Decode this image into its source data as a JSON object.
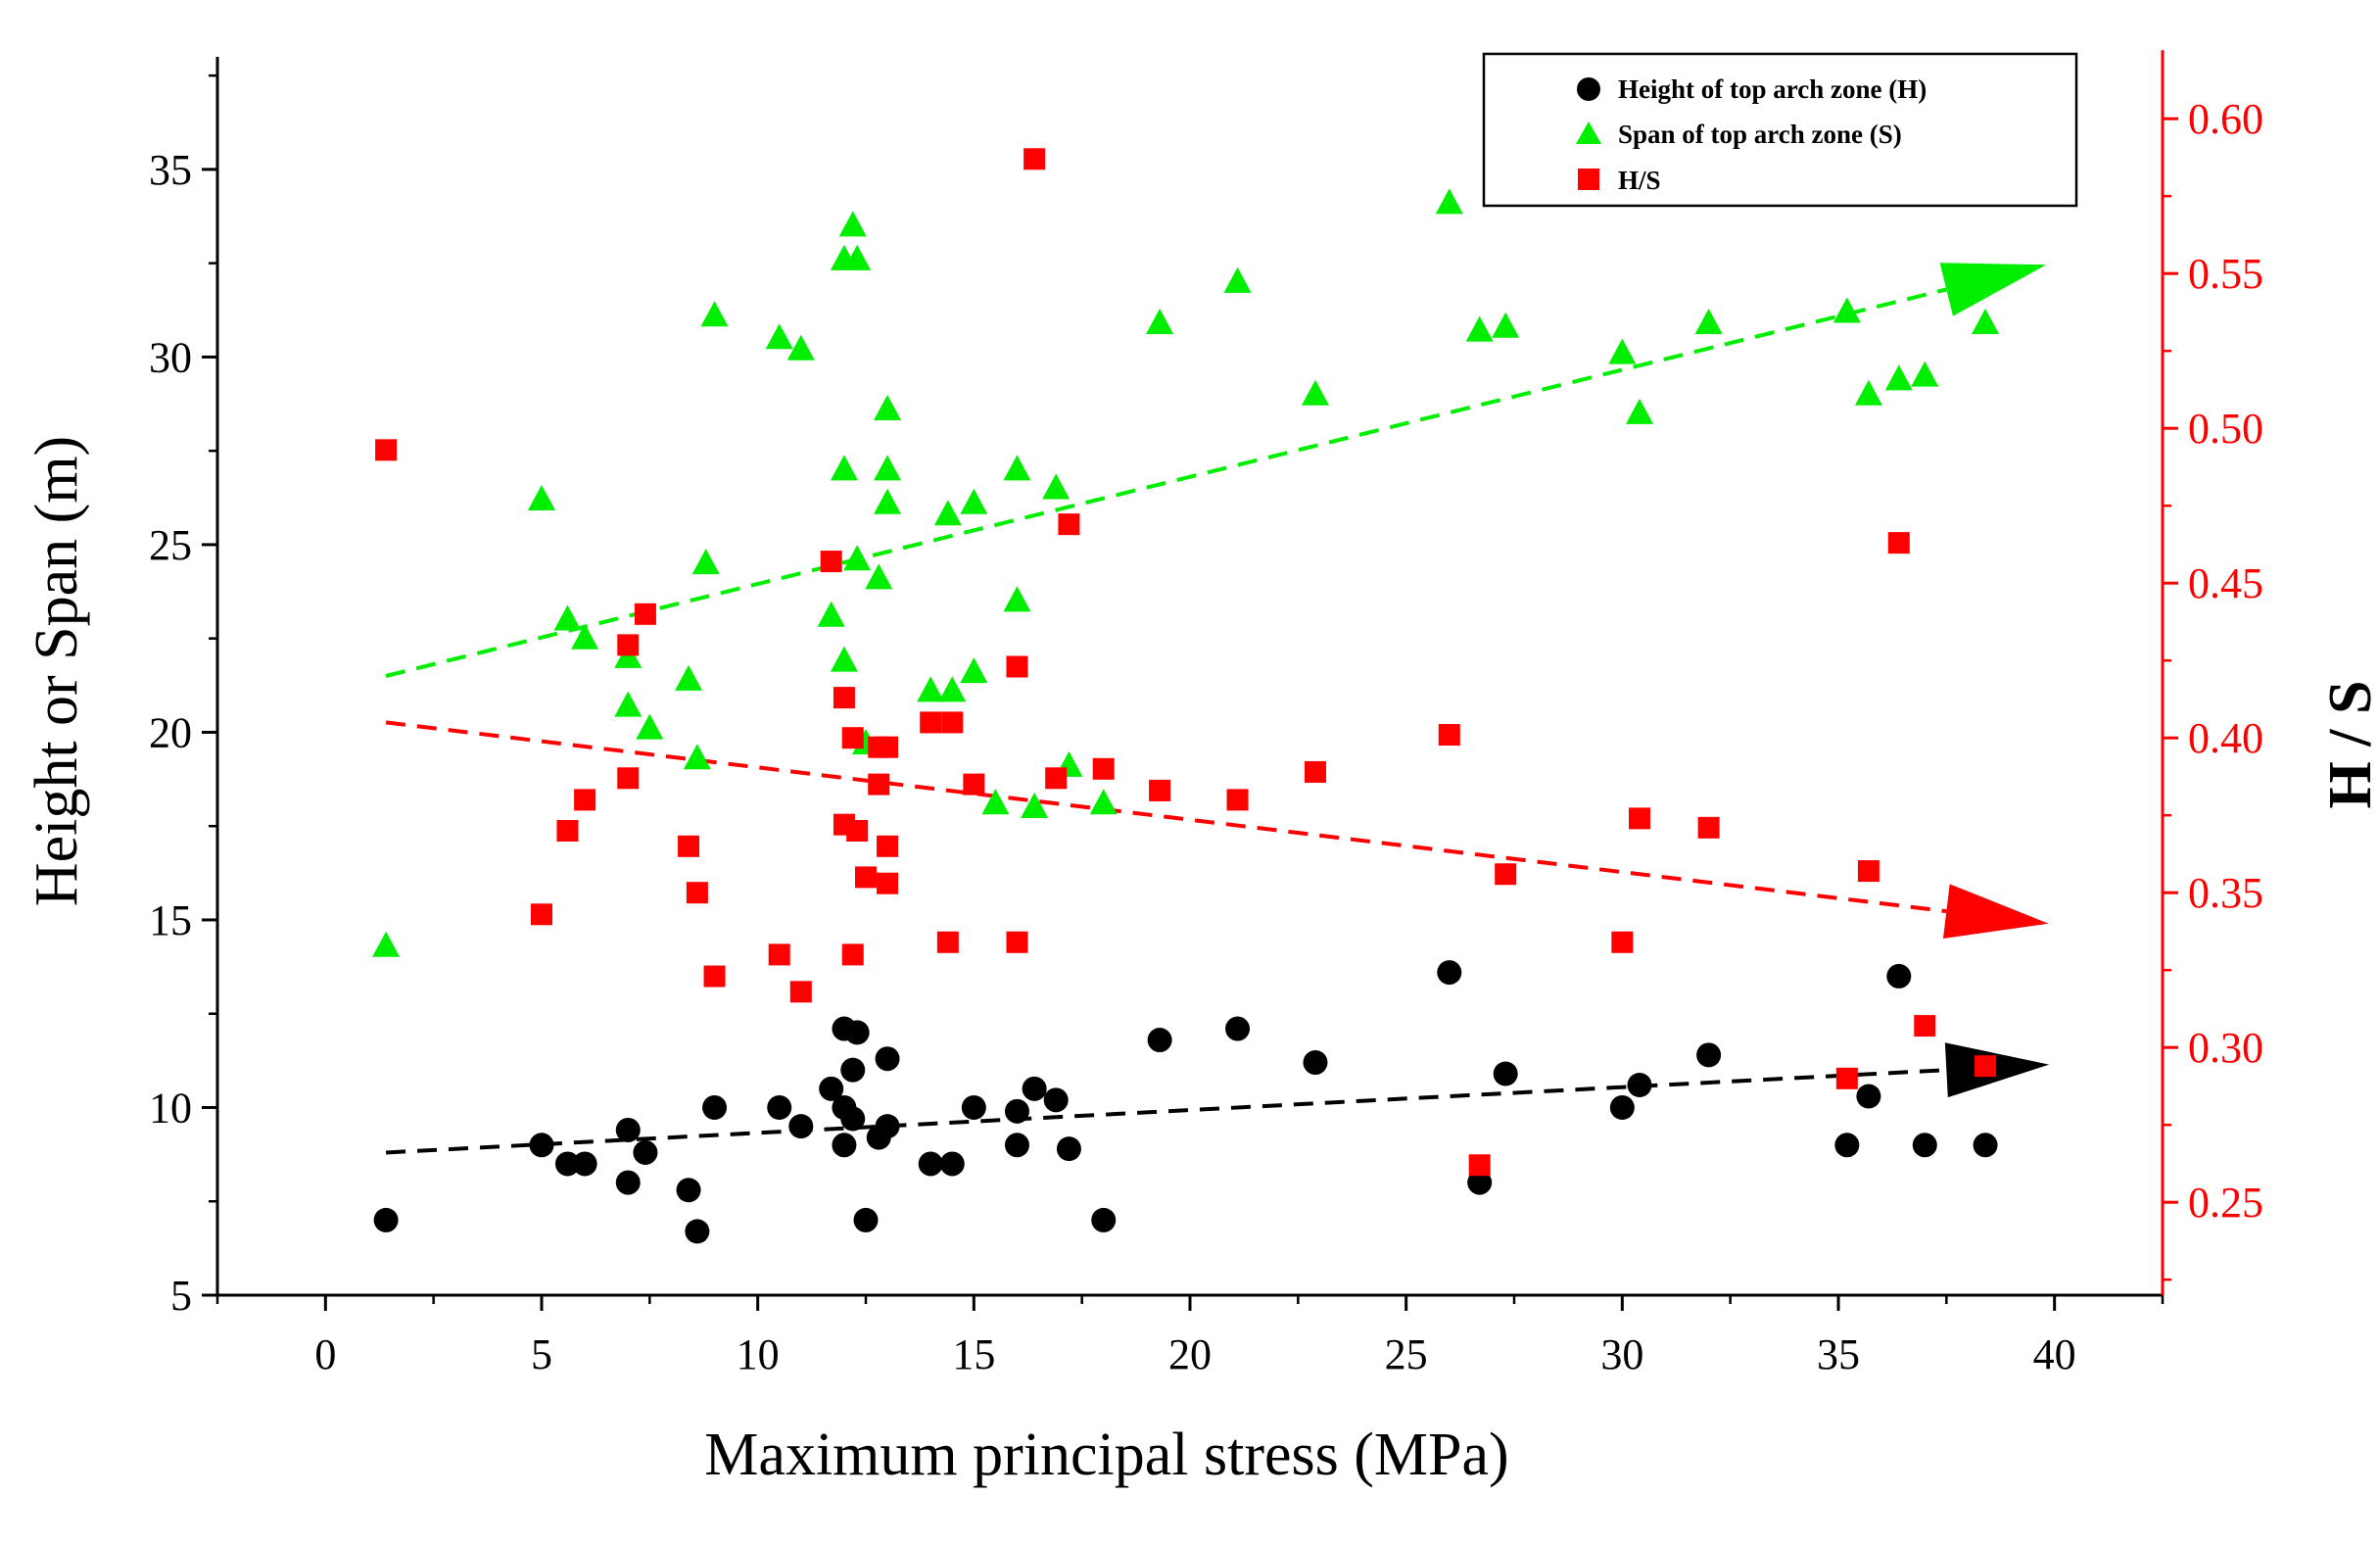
{
  "chart_data": {
    "type": "scatter",
    "title": "",
    "xlabel": "Maximum principal stress (MPa)",
    "ylabel_left": "Height or Span (m)",
    "ylabel_right": "H / S",
    "xlim": [
      -2.5,
      42.5
    ],
    "ylim_left": [
      5,
      38
    ],
    "ylim_right": [
      0.22,
      0.62
    ],
    "x_ticks": [
      0,
      5,
      10,
      15,
      20,
      25,
      30,
      35,
      40
    ],
    "x_tick_labels": [
      "0",
      "5",
      "10",
      "15",
      "20",
      "25",
      "30",
      "35",
      "40"
    ],
    "y_left_ticks": [
      5,
      10,
      15,
      20,
      25,
      30,
      35
    ],
    "y_left_tick_labels": [
      "5",
      "10",
      "15",
      "20",
      "25",
      "30",
      "35"
    ],
    "y_right_ticks": [
      0.25,
      0.3,
      0.35,
      0.4,
      0.45,
      0.5,
      0.55,
      0.6
    ],
    "y_right_tick_labels": [
      "0.25",
      "0.30",
      "0.35",
      "0.40",
      "0.45",
      "0.50",
      "0.55",
      "0.60"
    ],
    "legend_position": "top-right",
    "grid": false,
    "colors": {
      "height": "#000000",
      "span": "#00ee00",
      "ratio": "#ff0000",
      "right_axis": "#ff0000"
    },
    "series": [
      {
        "name": "Height of top arch zone (H)",
        "axis": "left",
        "marker": "circle",
        "color": "#000000",
        "x": [
          1.4,
          5,
          5.6,
          6,
          7,
          7,
          7.4,
          8.4,
          8.6,
          9,
          10.5,
          11,
          11.7,
          12,
          12,
          12,
          12.2,
          12.2,
          12.3,
          12.5,
          12.8,
          13,
          13,
          14,
          14.5,
          15,
          16,
          16,
          16.4,
          16.9,
          17.2,
          18,
          19.3,
          21.1,
          22.9,
          26,
          26.7,
          27.3,
          30,
          30.4,
          32,
          35.2,
          35.7,
          36.4,
          37,
          38.4
        ],
        "y": [
          7,
          9,
          8.5,
          8.5,
          9.4,
          8,
          8.8,
          7.8,
          6.7,
          10,
          10,
          9.5,
          10.5,
          12.1,
          10,
          9,
          11,
          9.7,
          12,
          7,
          9.2,
          11.3,
          9.5,
          8.5,
          8.5,
          10,
          9.9,
          9,
          10.5,
          10.2,
          8.9,
          7,
          11.8,
          12.1,
          11.2,
          13.6,
          8,
          10.9,
          10,
          10.6,
          11.4,
          9,
          10.3,
          13.5,
          9,
          9
        ]
      },
      {
        "name": "Span of top arch zone (S)",
        "axis": "left",
        "marker": "triangle",
        "color": "#00ee00",
        "x": [
          1.4,
          5,
          5.6,
          6,
          7,
          7,
          7.5,
          8.4,
          8.6,
          8.8,
          9,
          10.5,
          11,
          11.7,
          12,
          12,
          12,
          12.2,
          12.3,
          12.3,
          12.5,
          12.8,
          13,
          13,
          13,
          14,
          14.4,
          14.5,
          15,
          15,
          15.5,
          16,
          16,
          16.4,
          16.9,
          17.2,
          18,
          19.3,
          21.1,
          22.9,
          26,
          26.7,
          27.3,
          30,
          30.4,
          32,
          35.2,
          35.7,
          36.4,
          37,
          38.4
        ],
        "y": [
          14.3,
          26.2,
          23,
          22.5,
          22,
          20.7,
          20.1,
          21.4,
          19.3,
          24.5,
          31.1,
          30.5,
          30.2,
          23.1,
          32.6,
          27,
          21.9,
          33.5,
          32.6,
          24.6,
          19.7,
          24.1,
          28.6,
          27,
          26.1,
          21.1,
          25.8,
          21.1,
          26.1,
          21.6,
          18.1,
          27,
          23.5,
          18,
          26.5,
          19.1,
          18.1,
          30.9,
          32,
          29,
          34.1,
          30.7,
          30.8,
          30.1,
          28.5,
          30.9,
          31.2,
          29,
          29.4,
          29.5,
          30.9
        ]
      },
      {
        "name": "H/S",
        "axis": "right",
        "marker": "square",
        "color": "#ff0000",
        "x": [
          1.4,
          5,
          5.6,
          6,
          7,
          7,
          7.4,
          8.4,
          8.6,
          9,
          10.5,
          11,
          11.7,
          12,
          12,
          12.2,
          12.2,
          12.3,
          12.5,
          12.8,
          12.8,
          13,
          13,
          13,
          14,
          14.4,
          14.5,
          15,
          16,
          16,
          16.4,
          16.9,
          17.2,
          18,
          19.3,
          21.1,
          22.9,
          26,
          26.7,
          27.3,
          30,
          30.4,
          32,
          35.2,
          35.7,
          36.4,
          37,
          38.4
        ],
        "y": [
          0.493,
          0.343,
          0.37,
          0.38,
          0.387,
          0.43,
          0.44,
          0.365,
          0.35,
          0.323,
          0.33,
          0.318,
          0.457,
          0.413,
          0.372,
          0.4,
          0.33,
          0.37,
          0.355,
          0.385,
          0.397,
          0.397,
          0.365,
          0.353,
          0.405,
          0.334,
          0.405,
          0.385,
          0.423,
          0.334,
          0.587,
          0.387,
          0.469,
          0.39,
          0.383,
          0.38,
          0.389,
          0.401,
          0.262,
          0.356,
          0.334,
          0.374,
          0.371,
          0.29,
          0.357,
          0.463,
          0.307,
          0.294
        ]
      }
    ],
    "trendlines": [
      {
        "series": "Height of top arch zone (H)",
        "axis": "left",
        "x": [
          1.4,
          37.5
        ],
        "y": [
          8.8,
          11.0
        ],
        "color": "#000000"
      },
      {
        "series": "Span of top arch zone (S)",
        "axis": "left",
        "x": [
          1.4,
          37.5
        ],
        "y": [
          21.5,
          31.8
        ],
        "color": "#00ee00"
      },
      {
        "series": "H/S",
        "axis": "right",
        "x": [
          1.4,
          37.5
        ],
        "y": [
          0.405,
          0.344
        ],
        "color": "#ff0000"
      }
    ]
  }
}
